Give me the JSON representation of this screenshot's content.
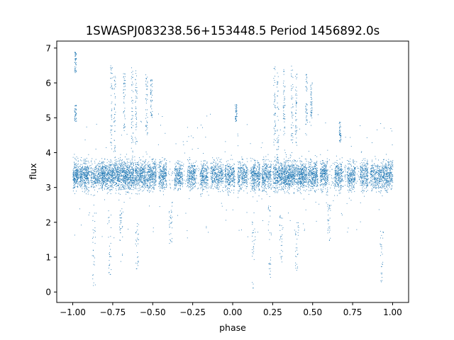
{
  "chart_data": {
    "type": "scatter",
    "title": "1SWASPJ083238.56+153448.5 Period 1456892.0s",
    "xlabel": "phase",
    "ylabel": "flux",
    "xlim": [
      -1.1,
      1.1
    ],
    "ylim": [
      -0.3,
      7.2
    ],
    "xticks": [
      "−1.00",
      "−0.75",
      "−0.50",
      "−0.25",
      "0.00",
      "0.25",
      "0.50",
      "0.75",
      "1.00"
    ],
    "xtick_values": [
      -1.0,
      -0.75,
      -0.5,
      -0.25,
      0.0,
      0.25,
      0.5,
      0.75,
      1.0
    ],
    "yticks": [
      "0",
      "1",
      "2",
      "3",
      "4",
      "5",
      "6",
      "7"
    ],
    "ytick_values": [
      0,
      1,
      2,
      3,
      4,
      5,
      6,
      7
    ],
    "grid": false,
    "marker_color": "#1f77b4",
    "baseline_flux": 3.35,
    "phase_clusters": [
      {
        "center": -0.985,
        "width": 0.02,
        "density": 1.0
      },
      {
        "center": -0.93,
        "width": 0.03,
        "density": 1.2
      },
      {
        "center": -0.85,
        "width": 0.04,
        "density": 1.0
      },
      {
        "center": -0.79,
        "width": 0.03,
        "density": 1.1
      },
      {
        "center": -0.72,
        "width": 0.04,
        "density": 1.5
      },
      {
        "center": -0.65,
        "width": 0.03,
        "density": 1.3
      },
      {
        "center": -0.58,
        "width": 0.035,
        "density": 1.3
      },
      {
        "center": -0.51,
        "width": 0.03,
        "density": 1.1
      },
      {
        "center": -0.44,
        "width": 0.025,
        "density": 0.9
      },
      {
        "center": -0.34,
        "width": 0.025,
        "density": 0.8
      },
      {
        "center": -0.26,
        "width": 0.025,
        "density": 0.8
      },
      {
        "center": -0.18,
        "width": 0.025,
        "density": 0.8
      },
      {
        "center": -0.1,
        "width": 0.04,
        "density": 1.1
      },
      {
        "center": -0.02,
        "width": 0.03,
        "density": 0.9
      },
      {
        "center": 0.06,
        "width": 0.03,
        "density": 0.9
      },
      {
        "center": 0.14,
        "width": 0.03,
        "density": 1.1
      },
      {
        "center": 0.21,
        "width": 0.03,
        "density": 1.0
      },
      {
        "center": 0.29,
        "width": 0.04,
        "density": 1.5
      },
      {
        "center": 0.36,
        "width": 0.03,
        "density": 1.3
      },
      {
        "center": 0.43,
        "width": 0.035,
        "density": 1.3
      },
      {
        "center": 0.5,
        "width": 0.03,
        "density": 1.1
      },
      {
        "center": 0.57,
        "width": 0.025,
        "density": 0.9
      },
      {
        "center": 0.66,
        "width": 0.025,
        "density": 0.8
      },
      {
        "center": 0.74,
        "width": 0.025,
        "density": 0.8
      },
      {
        "center": 0.82,
        "width": 0.025,
        "density": 0.8
      },
      {
        "center": 0.9,
        "width": 0.04,
        "density": 1.1
      },
      {
        "center": 0.97,
        "width": 0.03,
        "density": 1.0
      }
    ],
    "flare_streaks": [
      {
        "x": -0.985,
        "y_min": 4.9,
        "y_max": 5.4
      },
      {
        "x": -0.985,
        "y_min": 6.3,
        "y_max": 6.9
      },
      {
        "x": -0.76,
        "y_min": 4.2,
        "y_max": 6.5
      },
      {
        "x": -0.74,
        "y_min": 3.7,
        "y_max": 6.2
      },
      {
        "x": -0.68,
        "y_min": 4.5,
        "y_max": 6.3
      },
      {
        "x": -0.63,
        "y_min": 4.0,
        "y_max": 6.5
      },
      {
        "x": -0.605,
        "y_min": 4.2,
        "y_max": 6.4
      },
      {
        "x": -0.54,
        "y_min": 4.5,
        "y_max": 6.3
      },
      {
        "x": -0.51,
        "y_min": 5.0,
        "y_max": 6.1
      },
      {
        "x": 0.02,
        "y_min": 4.9,
        "y_max": 5.4
      },
      {
        "x": 0.26,
        "y_min": 4.2,
        "y_max": 6.5
      },
      {
        "x": 0.28,
        "y_min": 3.7,
        "y_max": 6.3
      },
      {
        "x": 0.32,
        "y_min": 4.5,
        "y_max": 6.4
      },
      {
        "x": 0.37,
        "y_min": 4.0,
        "y_max": 6.5
      },
      {
        "x": 0.395,
        "y_min": 4.2,
        "y_max": 6.3
      },
      {
        "x": 0.46,
        "y_min": 4.5,
        "y_max": 6.3
      },
      {
        "x": 0.49,
        "y_min": 5.0,
        "y_max": 6.1
      },
      {
        "x": 0.67,
        "y_min": 4.3,
        "y_max": 4.9
      }
    ],
    "dip_streaks": [
      {
        "x": -0.87,
        "y_min": 0.1,
        "y_max": 2.3
      },
      {
        "x": -0.77,
        "y_min": 0.4,
        "y_max": 2.5
      },
      {
        "x": -0.7,
        "y_min": 0.8,
        "y_max": 2.4
      },
      {
        "x": -0.6,
        "y_min": 0.6,
        "y_max": 2.0
      },
      {
        "x": -0.39,
        "y_min": 1.4,
        "y_max": 2.6
      },
      {
        "x": 0.13,
        "y_min": 0.1,
        "y_max": 2.3
      },
      {
        "x": 0.23,
        "y_min": 0.4,
        "y_max": 2.5
      },
      {
        "x": 0.3,
        "y_min": 0.8,
        "y_max": 2.4
      },
      {
        "x": 0.4,
        "y_min": 0.6,
        "y_max": 2.0
      },
      {
        "x": 0.6,
        "y_min": 1.4,
        "y_max": 2.6
      },
      {
        "x": 0.93,
        "y_min": 0.2,
        "y_max": 1.8
      }
    ]
  }
}
